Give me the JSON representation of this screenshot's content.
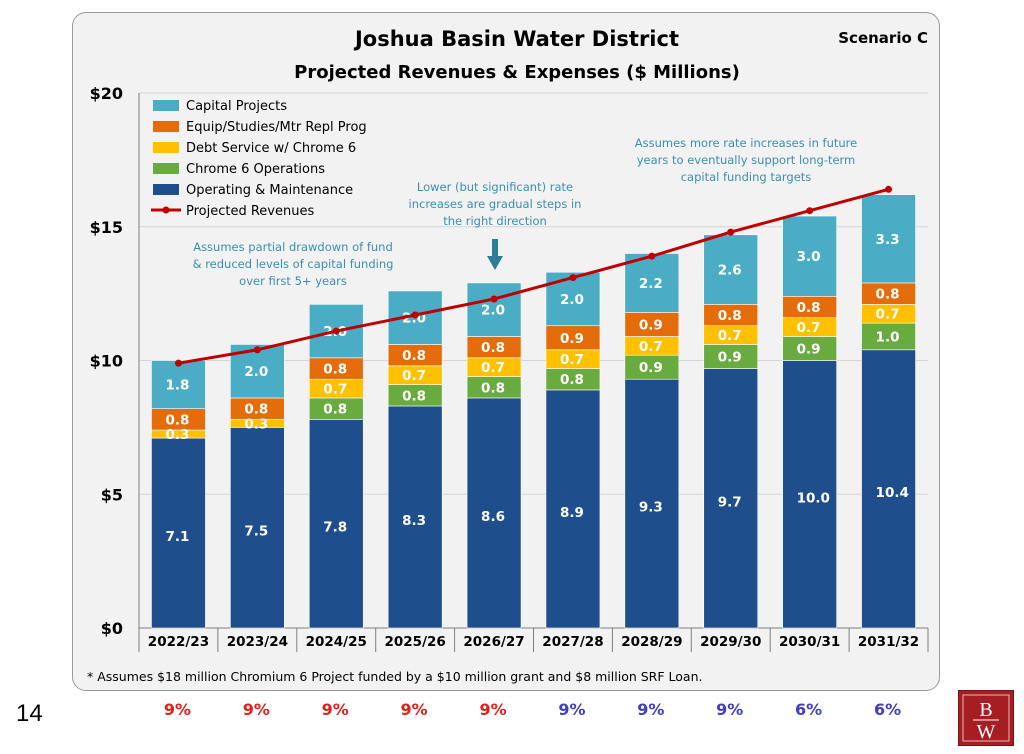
{
  "page": {
    "slide_number": "14",
    "footnote": "* Assumes $18 million Chromium 6 Project funded by a $10 million grant and $8 million SRF Loan.",
    "rates": [
      {
        "label": "9%",
        "color": "#e0201b"
      },
      {
        "label": "9%",
        "color": "#e0201b"
      },
      {
        "label": "9%",
        "color": "#e0201b"
      },
      {
        "label": "9%",
        "color": "#e0201b"
      },
      {
        "label": "9%",
        "color": "#e0201b"
      },
      {
        "label": "9%",
        "color": "#3f3fbf"
      },
      {
        "label": "9%",
        "color": "#3f3fbf"
      },
      {
        "label": "9%",
        "color": "#3f3fbf"
      },
      {
        "label": "6%",
        "color": "#3f3fbf"
      },
      {
        "label": "6%",
        "color": "#3f3fbf"
      }
    ],
    "logo_letters": "BW"
  },
  "chart_data": {
    "type": "bar",
    "title": "Joshua Basin Water District",
    "subtitle": "Projected Revenues & Expenses ($ Millions)",
    "scenario": "Scenario C",
    "categories": [
      "2022/23",
      "2023/24",
      "2024/25",
      "2025/26",
      "2026/27",
      "2027/28",
      "2028/29",
      "2029/30",
      "2030/31",
      "2031/32"
    ],
    "ylim": [
      0,
      20
    ],
    "yticks": [
      {
        "value": 0,
        "label": "$0"
      },
      {
        "value": 5,
        "label": "$5"
      },
      {
        "value": 10,
        "label": "$10"
      },
      {
        "value": 15,
        "label": "$15"
      },
      {
        "value": 20,
        "label": "$20"
      }
    ],
    "stacked": true,
    "series": [
      {
        "name": "Operating & Maintenance",
        "color": "#1f4e8c",
        "values": [
          7.1,
          7.5,
          7.8,
          8.3,
          8.6,
          8.9,
          9.3,
          9.7,
          10.0,
          10.4
        ],
        "labels": [
          "7.1",
          "7.5",
          "7.8",
          "8.3",
          "8.6",
          "8.9",
          "9.3",
          "9.7",
          "10.0",
          "10.4"
        ]
      },
      {
        "name": "Chrome 6 Operations",
        "color": "#6aab3f",
        "values": [
          0,
          0,
          0.8,
          0.8,
          0.8,
          0.8,
          0.9,
          0.9,
          0.9,
          1.0
        ],
        "labels": [
          "",
          "",
          "0.8",
          "0.8",
          "0.8",
          "0.8",
          "0.9",
          "0.9",
          "0.9",
          "1.0"
        ]
      },
      {
        "name": "Debt Service w/ Chrome 6",
        "color": "#ffc000",
        "values": [
          0.3,
          0.3,
          0.7,
          0.7,
          0.7,
          0.7,
          0.7,
          0.7,
          0.7,
          0.7
        ],
        "labels": [
          "0.3",
          "0.3",
          "0.7",
          "0.7",
          "0.7",
          "0.7",
          "0.7",
          "0.7",
          "0.7",
          "0.7"
        ]
      },
      {
        "name": "Equip/Studies/Mtr Repl Prog",
        "color": "#e46c0a",
        "values": [
          0.8,
          0.8,
          0.8,
          0.8,
          0.8,
          0.9,
          0.9,
          0.8,
          0.8,
          0.8
        ],
        "labels": [
          "0.8",
          "0.8",
          "0.8",
          "0.8",
          "0.8",
          "0.9",
          "0.9",
          "0.8",
          "0.8",
          "0.8"
        ]
      },
      {
        "name": "Capital Projects",
        "color": "#4bacc6",
        "values": [
          1.8,
          2.0,
          2.0,
          2.0,
          2.0,
          2.0,
          2.2,
          2.6,
          3.0,
          3.3
        ],
        "labels": [
          "1.8",
          "2.0",
          "2.0",
          "2.0",
          "2.0",
          "2.0",
          "2.2",
          "2.6",
          "3.0",
          "3.3"
        ]
      }
    ],
    "line": {
      "name": "Projected Revenues",
      "color": "#c00000",
      "values": [
        9.9,
        10.4,
        11.1,
        11.7,
        12.3,
        13.1,
        13.9,
        14.8,
        15.6,
        16.4
      ]
    },
    "legend": {
      "position": "top-left",
      "items": [
        "Capital Projects",
        "Equip/Studies/Mtr Repl Prog",
        "Debt Service w/ Chrome 6",
        "Chrome 6 Operations",
        "Operating & Maintenance",
        "Projected Revenues"
      ]
    },
    "annotations": [
      {
        "lines": [
          "Assumes partial drawdown of fund",
          "& reduced levels of capital funding",
          "over first 5+ years"
        ],
        "color": "#3a8fb0"
      },
      {
        "lines": [
          "Lower (but significant) rate",
          "increases are gradual steps in",
          "the right direction"
        ],
        "color": "#3a8fb0"
      },
      {
        "lines": [
          "Assumes more rate increases in future",
          "years to eventually support long-term",
          "capital funding targets"
        ],
        "color": "#3a8fb0"
      }
    ],
    "arrow_color": "#2e7d96",
    "grid": true
  }
}
